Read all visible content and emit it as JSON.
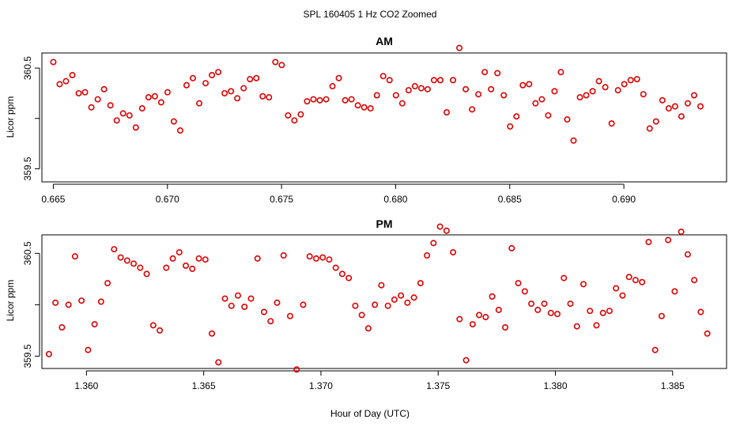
{
  "title": "SPL  160405  1 Hz CO2 Zoomed",
  "xlabel": "Hour of Day (UTC)",
  "chart_data": [
    {
      "type": "scatter",
      "title": "AM",
      "ylabel": "Licor ppm",
      "xlim": [
        0.6645,
        0.6945
      ],
      "ylim": [
        359.37,
        360.65
      ],
      "xticks": [
        0.665,
        0.67,
        0.675,
        0.68,
        0.685,
        0.69
      ],
      "xtick_labels": [
        "0.665",
        "0.670",
        "0.675",
        "0.680",
        "0.685",
        "0.690"
      ],
      "yticks": [
        359.5,
        360.0,
        360.5
      ],
      "ytick_labels": [
        "359.5",
        "",
        "360.5"
      ],
      "color": "#dd0000",
      "x_start": 0.665,
      "x_step": 0.000278,
      "y": [
        360.56,
        360.34,
        360.37,
        360.43,
        360.25,
        360.26,
        360.11,
        360.19,
        360.29,
        360.13,
        359.98,
        360.05,
        360.03,
        359.91,
        360.1,
        360.21,
        360.22,
        360.16,
        360.26,
        359.97,
        359.88,
        360.33,
        360.4,
        360.15,
        360.35,
        360.43,
        360.46,
        360.25,
        360.27,
        360.2,
        360.3,
        360.39,
        360.4,
        360.22,
        360.21,
        360.56,
        360.53,
        360.03,
        359.98,
        360.04,
        360.17,
        360.19,
        360.18,
        360.19,
        360.32,
        360.4,
        360.18,
        360.19,
        360.13,
        360.11,
        360.1,
        360.23,
        360.42,
        360.38,
        360.23,
        360.15,
        360.28,
        360.32,
        360.3,
        360.29,
        360.38,
        360.38,
        360.06,
        360.38,
        360.7,
        360.29,
        360.09,
        360.24,
        360.46,
        360.29,
        360.45,
        360.23,
        359.92,
        360.02,
        360.33,
        360.34,
        360.15,
        360.19,
        360.03,
        360.27,
        360.46,
        359.99,
        359.78,
        360.21,
        360.23,
        360.27,
        360.37,
        360.31,
        359.95,
        360.28,
        360.34,
        360.38,
        360.39,
        360.24,
        359.9,
        359.97,
        360.18,
        360.1,
        360.12,
        360.02,
        360.15,
        360.23,
        360.12
      ]
    },
    {
      "type": "scatter",
      "title": "PM",
      "ylabel": "Licor ppm",
      "xlim": [
        1.3581,
        1.3873
      ],
      "ylim": [
        359.38,
        360.68
      ],
      "xticks": [
        1.36,
        1.365,
        1.37,
        1.375,
        1.38,
        1.385
      ],
      "xtick_labels": [
        "1.360",
        "1.365",
        "1.370",
        "1.375",
        "1.380",
        "1.385"
      ],
      "yticks": [
        359.5,
        360.0,
        360.5
      ],
      "ytick_labels": [
        "359.5",
        "",
        "360.5"
      ],
      "color": "#dd0000",
      "x_start": 1.3584,
      "x_step": 0.000278,
      "y": [
        359.52,
        360.02,
        359.78,
        360.0,
        360.47,
        360.04,
        359.56,
        359.81,
        360.03,
        360.21,
        360.54,
        360.46,
        360.43,
        360.4,
        360.36,
        360.3,
        359.8,
        359.75,
        360.36,
        360.45,
        360.51,
        360.38,
        360.35,
        360.45,
        360.44,
        359.72,
        359.44,
        360.06,
        359.99,
        360.09,
        359.98,
        360.06,
        360.45,
        359.93,
        359.84,
        360.02,
        360.48,
        359.89,
        359.37,
        360.0,
        360.47,
        360.45,
        360.46,
        360.44,
        360.36,
        360.3,
        360.26,
        359.99,
        359.9,
        359.77,
        360.0,
        360.19,
        359.99,
        360.05,
        360.09,
        360.02,
        360.07,
        360.21,
        360.48,
        360.6,
        360.76,
        360.72,
        360.51,
        359.86,
        359.46,
        359.81,
        359.9,
        359.88,
        360.08,
        359.95,
        359.78,
        360.55,
        360.21,
        360.13,
        360.01,
        359.95,
        360.01,
        359.92,
        359.91,
        360.26,
        360.01,
        359.79,
        360.2,
        359.94,
        359.8,
        359.92,
        359.94,
        360.16,
        360.09,
        360.27,
        360.24,
        360.22,
        360.61,
        359.56,
        359.89,
        360.63,
        360.13,
        360.71,
        360.49,
        360.24,
        359.93,
        359.72
      ]
    }
  ]
}
